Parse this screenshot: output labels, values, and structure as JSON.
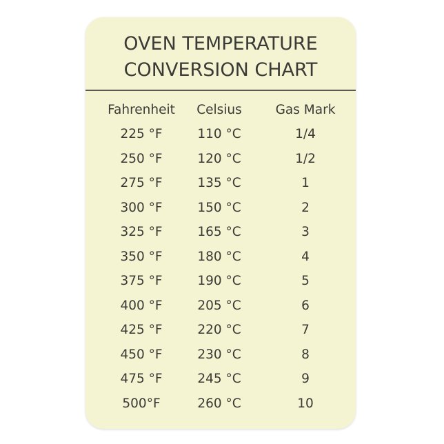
{
  "title_line1": "OVEN TEMPERATURE",
  "title_line2": "CONVERSION CHART",
  "headers": [
    "Fahrenheit",
    "Celsius",
    "Gas Mark"
  ],
  "rows": [
    [
      "225 °F",
      "110 °C",
      "1/4"
    ],
    [
      "250 °F",
      "120 °C",
      "1/2"
    ],
    [
      "275 °F",
      "135 °C",
      "1"
    ],
    [
      "300 °F",
      "150 °C",
      "2"
    ],
    [
      "325 °F",
      "165 °C",
      "3"
    ],
    [
      "350 °F",
      "180 °C",
      "4"
    ],
    [
      "375 °F",
      "190 °C",
      "5"
    ],
    [
      "400 °F",
      "205 °C",
      "6"
    ],
    [
      "425 °F",
      "220 °C",
      "7"
    ],
    [
      "450 °F",
      "230 °C",
      "8"
    ],
    [
      "475 °F",
      "245 °C",
      "9"
    ],
    [
      "500°F",
      "260 °C",
      "10"
    ]
  ],
  "colors": {
    "card": "#f4f4d2",
    "text": "#3a3a36"
  }
}
